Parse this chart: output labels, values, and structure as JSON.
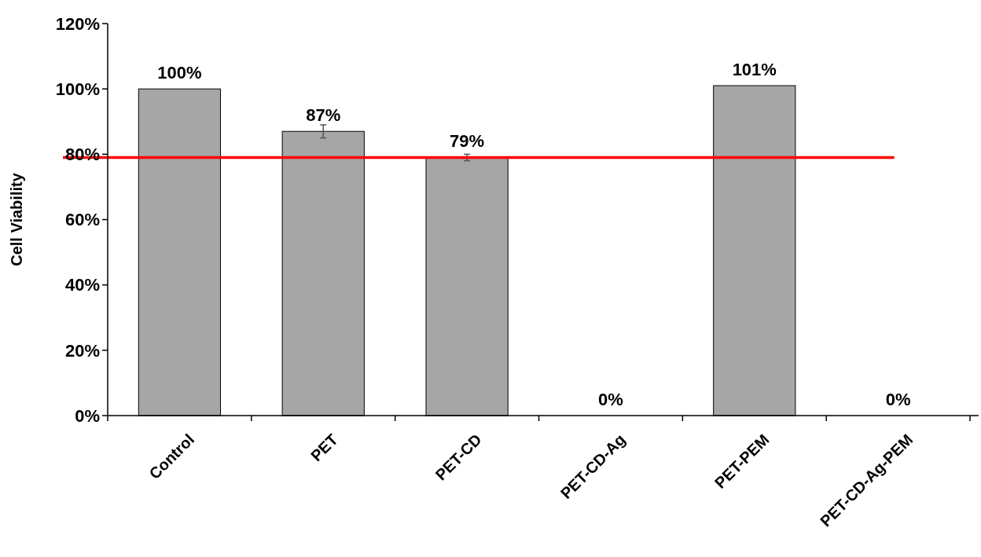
{
  "chart_data": {
    "type": "bar",
    "ylabel": "Cell Viability",
    "categories": [
      "Control",
      "PET",
      "PET-CD",
      "PET-CD-Ag",
      "PET-PEM",
      "PET-CD-Ag-PEM"
    ],
    "values": [
      100,
      87,
      79,
      0,
      101,
      0
    ],
    "errors": [
      null,
      2,
      1,
      null,
      null,
      null
    ],
    "value_labels": [
      "100%",
      "87%",
      "79%",
      "0%",
      "101%",
      "0%"
    ],
    "color": "#a6a6a6",
    "ylim": [
      0,
      120
    ],
    "yticks": [
      {
        "value": 0,
        "label": "0%"
      },
      {
        "value": 20,
        "label": "20%"
      },
      {
        "value": 40,
        "label": "40%"
      },
      {
        "value": 60,
        "label": "60%"
      },
      {
        "value": 80,
        "label": "80%"
      },
      {
        "value": 100,
        "label": "100%"
      },
      {
        "value": 120,
        "label": "120%"
      }
    ],
    "ref_lines": [
      {
        "axis": "y",
        "value": 79,
        "color": "#ff0000"
      }
    ]
  }
}
